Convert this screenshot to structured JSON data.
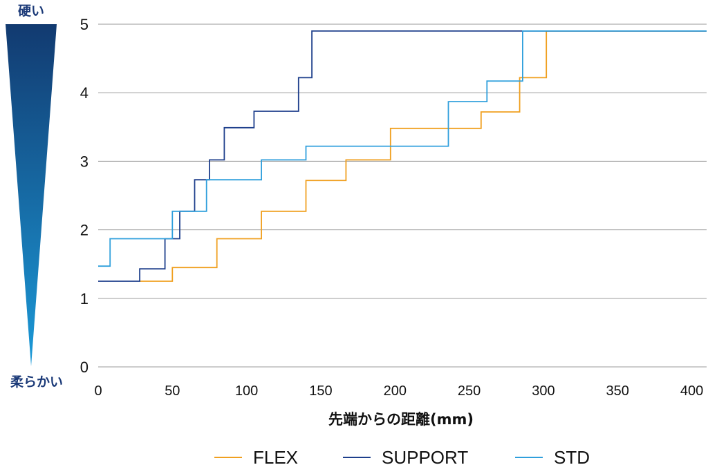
{
  "hardness_scale": {
    "top_label": "硬い",
    "bottom_label": "柔らかい",
    "label_color": "#1b3a78",
    "gradient_top": "#123a70",
    "gradient_bottom": "#1b9ad8"
  },
  "chart_data": {
    "type": "line",
    "step": true,
    "xlabel": "先端からの距離(mm)",
    "ylabel": "",
    "xlim": [
      0,
      410
    ],
    "ylim": [
      0,
      5
    ],
    "x_ticks": [
      "0",
      "50",
      "100",
      "150",
      "200",
      "250",
      "300",
      "350",
      "400"
    ],
    "y_ticks": [
      "0",
      "1",
      "2",
      "3",
      "4",
      "5"
    ],
    "grid": "horizontal",
    "legend_position": "bottom",
    "series": [
      {
        "name": "FLEX",
        "color": "#f0a020",
        "points": [
          [
            28,
            1.25
          ],
          [
            50,
            1.25
          ],
          [
            50,
            1.45
          ],
          [
            80,
            1.45
          ],
          [
            80,
            1.87
          ],
          [
            110,
            1.87
          ],
          [
            110,
            2.27
          ],
          [
            140,
            2.27
          ],
          [
            140,
            2.72
          ],
          [
            167,
            2.72
          ],
          [
            167,
            3.02
          ],
          [
            197,
            3.02
          ],
          [
            197,
            3.48
          ],
          [
            258,
            3.48
          ],
          [
            258,
            3.72
          ],
          [
            284,
            3.72
          ],
          [
            284,
            4.22
          ],
          [
            302,
            4.22
          ],
          [
            302,
            4.9
          ],
          [
            410,
            4.9
          ]
        ]
      },
      {
        "name": "SUPPORT",
        "color": "#1e3f8c",
        "points": [
          [
            0,
            1.25
          ],
          [
            28,
            1.25
          ],
          [
            28,
            1.43
          ],
          [
            45,
            1.43
          ],
          [
            45,
            1.87
          ],
          [
            55,
            1.87
          ],
          [
            55,
            2.27
          ],
          [
            65,
            2.27
          ],
          [
            65,
            2.73
          ],
          [
            75,
            2.73
          ],
          [
            75,
            3.02
          ],
          [
            85,
            3.02
          ],
          [
            85,
            3.49
          ],
          [
            105,
            3.49
          ],
          [
            105,
            3.73
          ],
          [
            135,
            3.73
          ],
          [
            135,
            4.22
          ],
          [
            144,
            4.22
          ],
          [
            144,
            4.9
          ],
          [
            410,
            4.9
          ]
        ]
      },
      {
        "name": "STD",
        "color": "#2f9fdc",
        "points": [
          [
            0,
            1.47
          ],
          [
            8,
            1.47
          ],
          [
            8,
            1.87
          ],
          [
            50,
            1.87
          ],
          [
            50,
            2.27
          ],
          [
            73,
            2.27
          ],
          [
            73,
            2.73
          ],
          [
            110,
            2.73
          ],
          [
            110,
            3.02
          ],
          [
            140,
            3.02
          ],
          [
            140,
            3.22
          ],
          [
            236,
            3.22
          ],
          [
            236,
            3.87
          ],
          [
            262,
            3.87
          ],
          [
            262,
            4.17
          ],
          [
            286,
            4.17
          ],
          [
            286,
            4.9
          ],
          [
            410,
            4.9
          ]
        ]
      }
    ]
  }
}
